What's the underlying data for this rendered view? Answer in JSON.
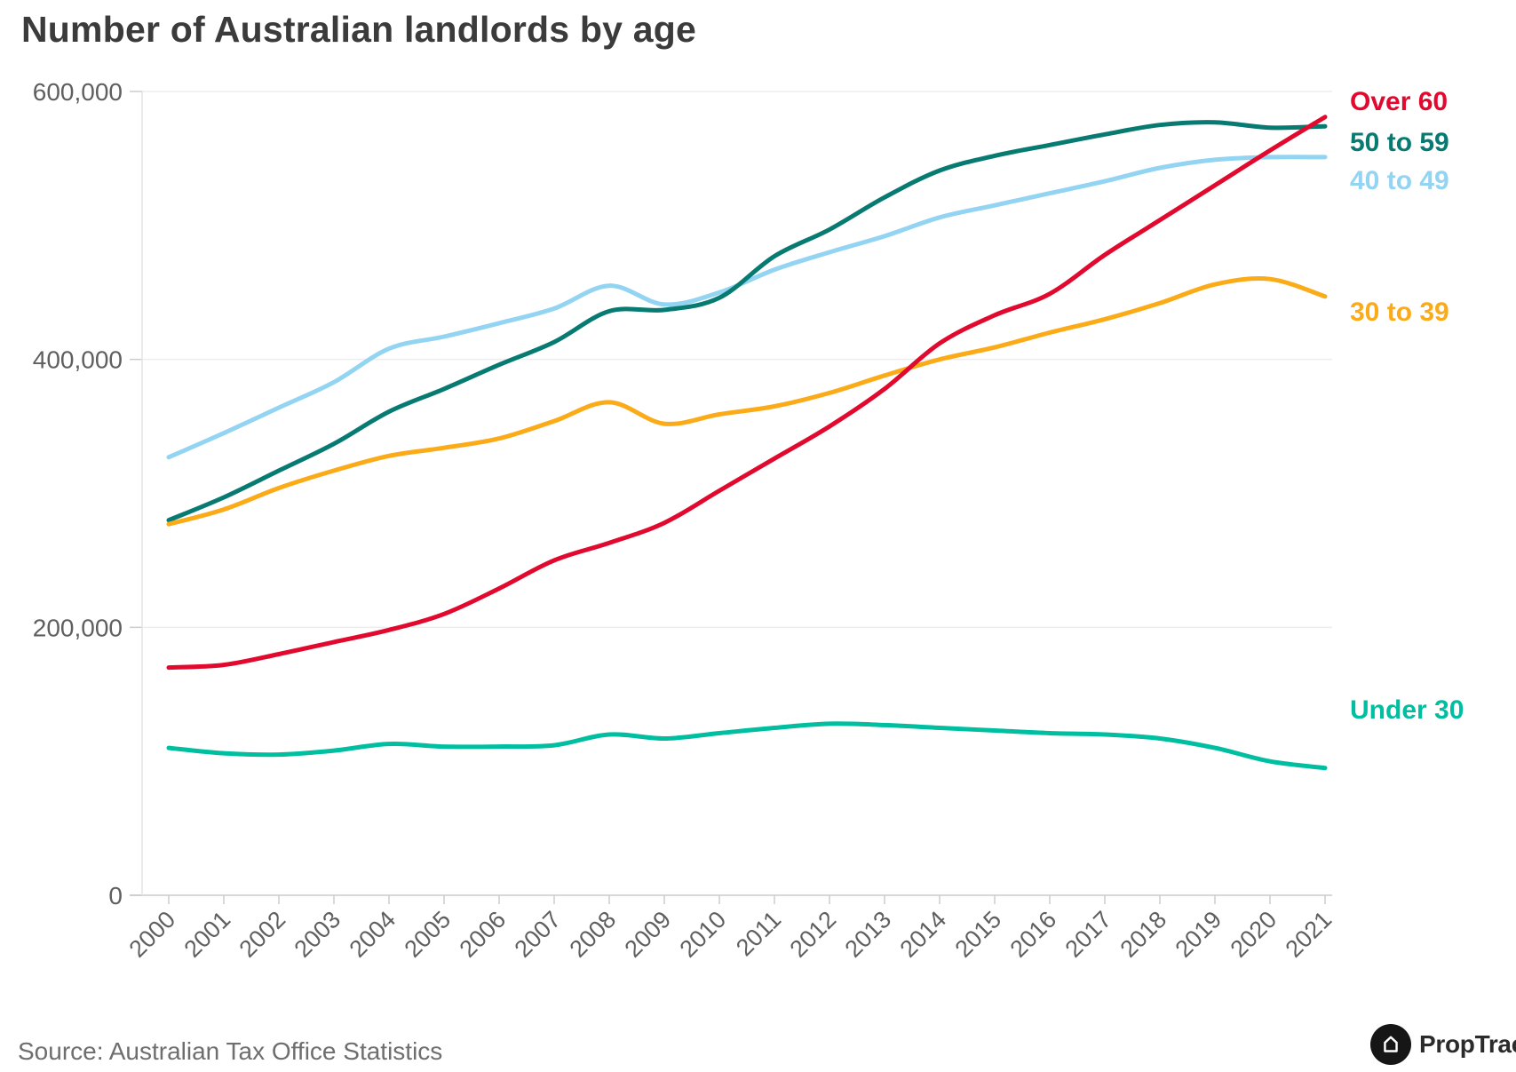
{
  "title": "Number of Australian landlords by age",
  "source": "Source: Australian Tax Office Statistics",
  "branding": {
    "logo_text": "PropTrack",
    "logo_icon": "house-icon"
  },
  "colors": {
    "background": "#ffffff",
    "grid": "#ededed",
    "axis": "#d8d8d8",
    "tick": "#cccccc",
    "axis_label": "#5f5f5f",
    "title_text": "#3b3b3b",
    "source_text": "#6e6e6e",
    "logo_circle": "#161616",
    "logo_text": "#2b2b2b"
  },
  "chart_data": {
    "type": "line",
    "title": "Number of Australian landlords by age",
    "xlabel": "",
    "ylabel": "",
    "categories": [
      "2000",
      "2001",
      "2002",
      "2003",
      "2004",
      "2005",
      "2006",
      "2007",
      "2008",
      "2009",
      "2010",
      "2011",
      "2012",
      "2013",
      "2014",
      "2015",
      "2016",
      "2017",
      "2018",
      "2019",
      "2020",
      "2021"
    ],
    "y_ticks": [
      0,
      200000,
      400000,
      600000
    ],
    "y_tick_labels": [
      "0",
      "200,000",
      "400,000",
      "600,000"
    ],
    "ylim": [
      0,
      600000
    ],
    "grid": "horizontal-light",
    "legend_position": "right-of-line-ends",
    "series": [
      {
        "name": "Over 60",
        "color": "#e2092f",
        "values": [
          170000,
          172000,
          180000,
          189000,
          198000,
          210000,
          229000,
          250000,
          263000,
          278000,
          302000,
          326000,
          350000,
          378000,
          412000,
          433000,
          449000,
          478000,
          504000,
          530000,
          556000,
          581000
        ]
      },
      {
        "name": "50 to 59",
        "color": "#077a72",
        "values": [
          280000,
          297000,
          317000,
          337000,
          361000,
          378000,
          396000,
          413000,
          436000,
          437000,
          446000,
          477000,
          497000,
          521000,
          541000,
          552000,
          560000,
          568000,
          575000,
          577000,
          573000,
          574000
        ]
      },
      {
        "name": "40 to 49",
        "color": "#92d4f2",
        "values": [
          327000,
          345000,
          364000,
          383000,
          408000,
          417000,
          427000,
          438000,
          455000,
          441000,
          450000,
          467000,
          480000,
          492000,
          506000,
          515000,
          524000,
          533000,
          543000,
          549000,
          551000,
          551000
        ]
      },
      {
        "name": "30 to 39",
        "color": "#fbab18",
        "values": [
          277000,
          288000,
          304000,
          317000,
          328000,
          334000,
          341000,
          354000,
          368000,
          352000,
          359000,
          365000,
          375000,
          388000,
          400000,
          409000,
          420000,
          430000,
          442000,
          456000,
          460000,
          447000
        ]
      },
      {
        "name": "Under 30",
        "color": "#00bfa0",
        "values": [
          110000,
          106000,
          105000,
          108000,
          113000,
          111000,
          111000,
          112000,
          120000,
          117000,
          121000,
          125000,
          128000,
          127000,
          125000,
          123000,
          121000,
          120000,
          117000,
          110000,
          100000,
          95000
        ]
      }
    ]
  }
}
